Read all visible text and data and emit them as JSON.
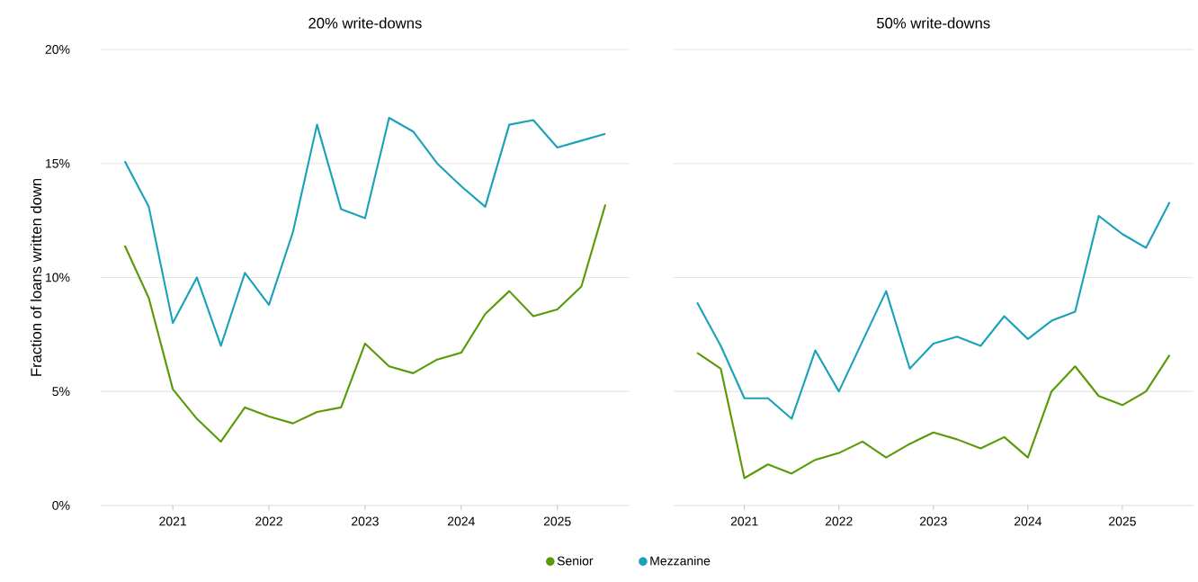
{
  "chart_data": [
    {
      "type": "line",
      "title": "20% write-downs",
      "ylabel": "Fraction of loans written down",
      "x": [
        2020.5,
        2020.75,
        2021,
        2021.25,
        2021.5,
        2021.75,
        2022,
        2022.25,
        2022.5,
        2022.75,
        2023,
        2023.25,
        2023.5,
        2023.75,
        2024,
        2024.25,
        2024.5,
        2024.75,
        2025,
        2025.25,
        2025.5
      ],
      "series": [
        {
          "name": "Senior",
          "color": "#5a9a08",
          "values": [
            11.4,
            9.1,
            5.1,
            3.8,
            2.8,
            4.3,
            3.9,
            3.6,
            4.1,
            4.3,
            7.1,
            6.1,
            5.8,
            6.4,
            6.7,
            8.4,
            9.4,
            8.3,
            8.6,
            9.6,
            13.2
          ]
        },
        {
          "name": "Mezzanine",
          "color": "#1aa3b8",
          "values": [
            15.1,
            13.1,
            8.0,
            10.0,
            7.0,
            10.2,
            8.8,
            12.0,
            16.7,
            13.0,
            12.6,
            17.0,
            16.4,
            15.0,
            14.0,
            13.1,
            16.7,
            16.9,
            15.7,
            16.0,
            16.3
          ]
        }
      ],
      "xlim": [
        2020.25,
        2025.75
      ],
      "xticks": [
        2021,
        2022,
        2023,
        2024,
        2025
      ],
      "ylim": [
        0,
        20
      ],
      "yticks": [
        {
          "value": 0,
          "label": "0%"
        },
        {
          "value": 5,
          "label": "5%"
        },
        {
          "value": 10,
          "label": "10%"
        },
        {
          "value": 15,
          "label": "15%"
        },
        {
          "value": 20,
          "label": "20%"
        }
      ],
      "grid": "y",
      "legend": "bottom"
    },
    {
      "type": "line",
      "title": "50% write-downs",
      "x": [
        2020.5,
        2020.75,
        2021,
        2021.25,
        2021.5,
        2021.75,
        2022,
        2022.25,
        2022.5,
        2022.75,
        2023,
        2023.25,
        2023.5,
        2023.75,
        2024,
        2024.25,
        2024.5,
        2024.75,
        2025,
        2025.25,
        2025.5
      ],
      "series": [
        {
          "color": "#5a9a08",
          "values": [
            6.7,
            6.0,
            1.2,
            1.8,
            1.4,
            2.0,
            2.3,
            2.8,
            2.1,
            2.7,
            3.2,
            2.9,
            2.5,
            3.0,
            2.1,
            5.0,
            6.1,
            4.8,
            4.4,
            5.0,
            6.6
          ]
        },
        {
          "color": "#1aa3b8",
          "values": [
            8.9,
            7.0,
            4.7,
            4.7,
            3.8,
            6.8,
            5.0,
            7.2,
            9.4,
            6.0,
            7.1,
            7.4,
            7.0,
            8.3,
            7.3,
            8.1,
            8.5,
            12.7,
            11.9,
            11.3,
            13.3
          ]
        }
      ],
      "xlim": [
        2020.25,
        2025.75
      ],
      "xticks": [
        2021,
        2022,
        2023,
        2024,
        2025
      ],
      "ylim": [
        0,
        20
      ],
      "yticks": [
        0,
        5,
        10,
        15,
        20
      ],
      "grid": "y",
      "tick_labels": "x"
    }
  ]
}
